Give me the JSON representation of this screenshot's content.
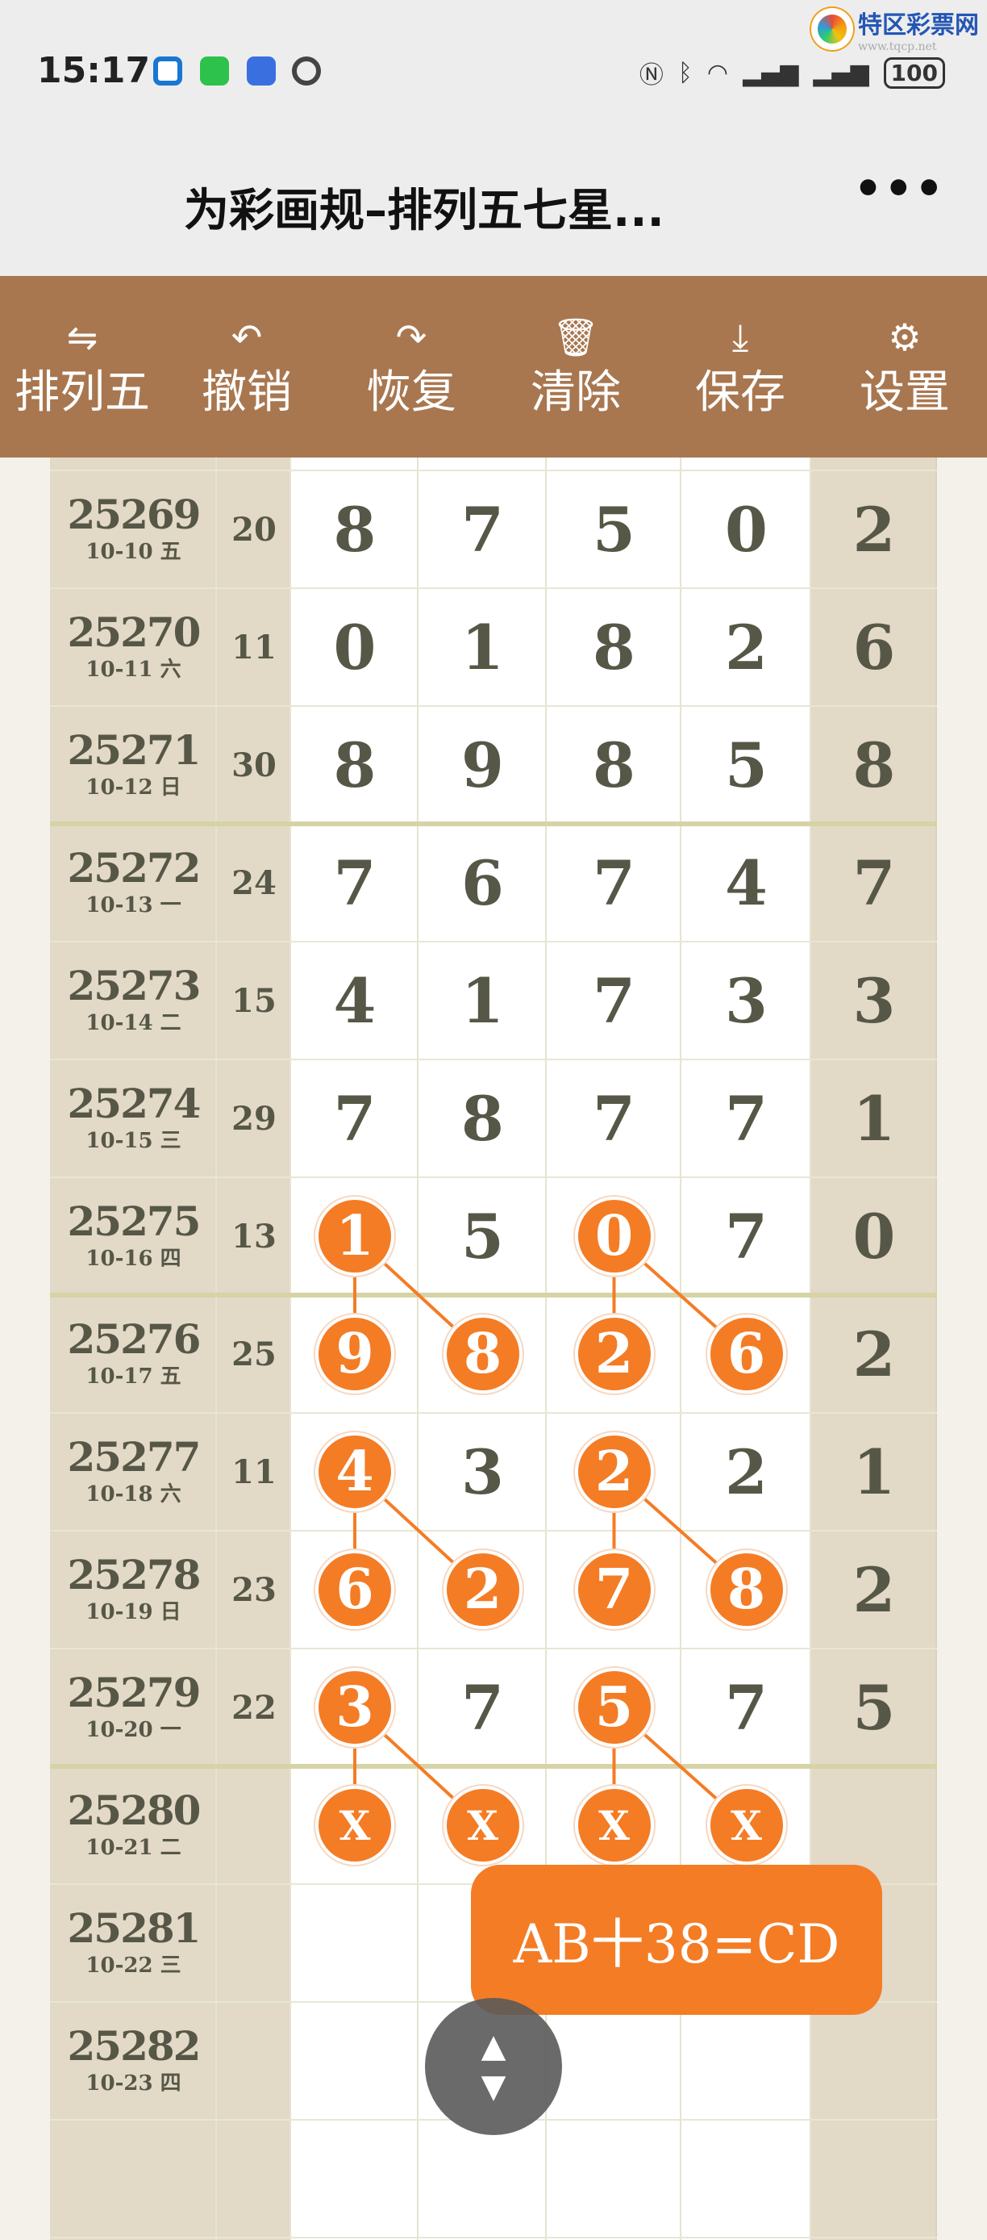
{
  "status_bar": {
    "time": "15:17",
    "battery": "100",
    "icons": [
      "app-c-icon",
      "wechat-icon",
      "app-blue-icon",
      "eye-icon"
    ],
    "right_icons": [
      "nfc-icon",
      "bluetooth-icon",
      "wifi-icon",
      "signal-icon",
      "signal-icon"
    ]
  },
  "watermark": {
    "name": "特区彩票网",
    "url": "www.tqcp.net"
  },
  "titlebar": {
    "title": "为彩画规–排列五七星...",
    "close": "✕",
    "more": "•••"
  },
  "toolbar": [
    {
      "icon": "swap-icon",
      "glyph": "⇋",
      "label": "排列五"
    },
    {
      "icon": "undo-icon",
      "glyph": "↶",
      "label": "撤销"
    },
    {
      "icon": "redo-icon",
      "glyph": "↷",
      "label": "恢复"
    },
    {
      "icon": "trash-icon",
      "glyph": "🗑",
      "label": "清除"
    },
    {
      "icon": "download-icon",
      "glyph": "⤓",
      "label": "保存"
    },
    {
      "icon": "gear-icon",
      "glyph": "⚙",
      "label": "设置"
    }
  ],
  "colors": {
    "highlight": "#f47c25",
    "toolbar": "#a87750",
    "side": "#e2d9c7"
  },
  "rows": [
    {
      "issue": "25269",
      "date": "10-10 五",
      "sum": "20",
      "digits": [
        "8",
        "7",
        "5",
        "0",
        "2"
      ],
      "hl": [
        0,
        0,
        0,
        0
      ]
    },
    {
      "issue": "25270",
      "date": "10-11 六",
      "sum": "11",
      "digits": [
        "0",
        "1",
        "8",
        "2",
        "6"
      ],
      "hl": [
        0,
        0,
        0,
        0
      ]
    },
    {
      "issue": "25271",
      "date": "10-12 日",
      "sum": "30",
      "digits": [
        "8",
        "9",
        "8",
        "5",
        "8"
      ],
      "hl": [
        0,
        0,
        0,
        0
      ]
    },
    {
      "issue": "25272",
      "date": "10-13 一",
      "sum": "24",
      "digits": [
        "7",
        "6",
        "7",
        "4",
        "7"
      ],
      "hl": [
        0,
        0,
        0,
        0
      ]
    },
    {
      "issue": "25273",
      "date": "10-14 二",
      "sum": "15",
      "digits": [
        "4",
        "1",
        "7",
        "3",
        "3"
      ],
      "hl": [
        0,
        0,
        0,
        0
      ]
    },
    {
      "issue": "25274",
      "date": "10-15 三",
      "sum": "29",
      "digits": [
        "7",
        "8",
        "7",
        "7",
        "1"
      ],
      "hl": [
        0,
        0,
        0,
        0
      ]
    },
    {
      "issue": "25275",
      "date": "10-16 四",
      "sum": "13",
      "digits": [
        "1",
        "5",
        "0",
        "7",
        "0"
      ],
      "hl": [
        1,
        0,
        1,
        0
      ]
    },
    {
      "issue": "25276",
      "date": "10-17 五",
      "sum": "25",
      "digits": [
        "9",
        "8",
        "2",
        "6",
        "2"
      ],
      "hl": [
        1,
        1,
        1,
        1
      ]
    },
    {
      "issue": "25277",
      "date": "10-18 六",
      "sum": "11",
      "digits": [
        "4",
        "3",
        "2",
        "2",
        "1"
      ],
      "hl": [
        1,
        0,
        1,
        0
      ]
    },
    {
      "issue": "25278",
      "date": "10-19 日",
      "sum": "23",
      "digits": [
        "6",
        "2",
        "7",
        "8",
        "2"
      ],
      "hl": [
        1,
        1,
        1,
        1
      ]
    },
    {
      "issue": "25279",
      "date": "10-20 一",
      "sum": "22",
      "digits": [
        "3",
        "7",
        "5",
        "7",
        "5"
      ],
      "hl": [
        1,
        0,
        1,
        0
      ]
    },
    {
      "issue": "25280",
      "date": "10-21 二",
      "sum": "",
      "digits": [
        "X",
        "X",
        "X",
        "X",
        ""
      ],
      "hl": [
        1,
        1,
        1,
        1
      ]
    },
    {
      "issue": "25281",
      "date": "10-22 三",
      "sum": "",
      "digits": [
        "",
        "",
        "",
        "",
        ""
      ],
      "hl": [
        0,
        0,
        0,
        0
      ]
    },
    {
      "issue": "25282",
      "date": "10-23 四",
      "sum": "",
      "digits": [
        "",
        "",
        "",
        "",
        ""
      ],
      "hl": [
        0,
        0,
        0,
        0
      ]
    }
  ],
  "formula": "AB十38=CD",
  "scroll_button": {
    "up": "▲",
    "down": "▼"
  }
}
